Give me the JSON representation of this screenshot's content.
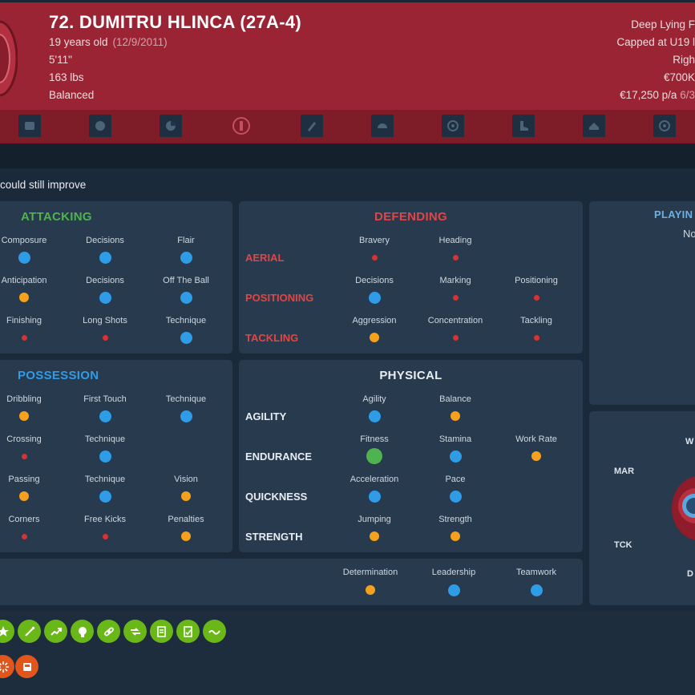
{
  "header": {
    "name": "72. DUMITRU HLINCA (27A-4)",
    "age": "19 years old",
    "dob": "(12/9/2011)",
    "height": "5'11\"",
    "weight": "163 lbs",
    "personality": "Balanced",
    "position": "Deep Lying F",
    "caps": "Capped at U19 l",
    "foot": "Righ",
    "value": "€700K",
    "wage": "€17,250 p/a",
    "wage_extra": "6/3"
  },
  "tabs": [
    "shirt-icon",
    "ball-icon",
    "pie-chart-icon",
    "badge-icon",
    "pencil-icon",
    "helmet-icon",
    "compass-icon",
    "boot-icon",
    "cap-icon",
    "target-icon"
  ],
  "improve_text": "could still improve",
  "attacking": {
    "title": "ATTACKING",
    "rows": [
      [
        {
          "label": "Composure",
          "level": "blue"
        },
        {
          "label": "Decisions",
          "level": "blue"
        },
        {
          "label": "Flair",
          "level": "blue"
        }
      ],
      [
        {
          "label": "Anticipation",
          "level": "orange"
        },
        {
          "label": "Decisions",
          "level": "blue"
        },
        {
          "label": "Off The Ball",
          "level": "blue"
        }
      ],
      [
        {
          "label": "Finishing",
          "level": "red"
        },
        {
          "label": "Long Shots",
          "level": "red"
        },
        {
          "label": "Technique",
          "level": "blue"
        }
      ]
    ]
  },
  "defending": {
    "title": "DEFENDING",
    "rows": [
      {
        "group": "AERIAL",
        "items": [
          {
            "label": "Bravery",
            "level": "red"
          },
          {
            "label": "Heading",
            "level": "red"
          }
        ]
      },
      {
        "group": "POSITIONING",
        "items": [
          {
            "label": "Decisions",
            "level": "blue"
          },
          {
            "label": "Marking",
            "level": "red"
          },
          {
            "label": "Positioning",
            "level": "red"
          }
        ]
      },
      {
        "group": "TACKLING",
        "items": [
          {
            "label": "Aggression",
            "level": "orange"
          },
          {
            "label": "Concentration",
            "level": "red"
          },
          {
            "label": "Tackling",
            "level": "red"
          }
        ]
      }
    ]
  },
  "possession": {
    "title": "POSSESSION",
    "rows": [
      [
        {
          "label": "Dribbling",
          "level": "orange"
        },
        {
          "label": "First Touch",
          "level": "blue"
        },
        {
          "label": "Technique",
          "level": "blue"
        }
      ],
      [
        {
          "label": "Crossing",
          "level": "red"
        },
        {
          "label": "Technique",
          "level": "blue"
        }
      ],
      [
        {
          "label": "Passing",
          "level": "orange"
        },
        {
          "label": "Technique",
          "level": "blue"
        },
        {
          "label": "Vision",
          "level": "orange"
        }
      ],
      [
        {
          "label": "Corners",
          "level": "red"
        },
        {
          "label": "Free Kicks",
          "level": "red"
        },
        {
          "label": "Penalties",
          "level": "orange"
        }
      ]
    ]
  },
  "physical": {
    "title": "PHYSICAL",
    "rows": [
      {
        "group": "AGILITY",
        "items": [
          {
            "label": "Agility",
            "level": "blue"
          },
          {
            "label": "Balance",
            "level": "orange"
          }
        ]
      },
      {
        "group": "ENDURANCE",
        "items": [
          {
            "label": "Fitness",
            "level": "green"
          },
          {
            "label": "Stamina",
            "level": "blue"
          },
          {
            "label": "Work Rate",
            "level": "orange"
          }
        ]
      },
      {
        "group": "QUICKNESS",
        "items": [
          {
            "label": "Acceleration",
            "level": "blue"
          },
          {
            "label": "Pace",
            "level": "blue"
          }
        ]
      },
      {
        "group": "STRENGTH",
        "items": [
          {
            "label": "Jumping",
            "level": "orange"
          },
          {
            "label": "Strength",
            "level": "orange"
          }
        ]
      }
    ]
  },
  "mental": [
    {
      "label": "Determination",
      "level": "orange"
    },
    {
      "label": "Leadership",
      "level": "blue"
    },
    {
      "label": "Teamwork",
      "level": "blue"
    }
  ],
  "playing_panel": {
    "title": "PLAYIN",
    "subtitle": "No"
  },
  "radar": {
    "top": "W",
    "left_upper": "MAR",
    "left_lower": "TCK",
    "bottom": "D"
  },
  "colors": {
    "blue": "#2f9ce8",
    "orange": "#f5a11d",
    "red": "#d83333",
    "green": "#4fb34f",
    "header": "#9a2433"
  },
  "traits_green": [
    "star-icon",
    "wand-icon",
    "trend-up-icon",
    "head-icon",
    "chain-icon",
    "exchange-icon",
    "report-icon",
    "report-check-icon",
    "wave-icon"
  ],
  "traits_orange": [
    "burst-icon",
    "card-icon"
  ]
}
